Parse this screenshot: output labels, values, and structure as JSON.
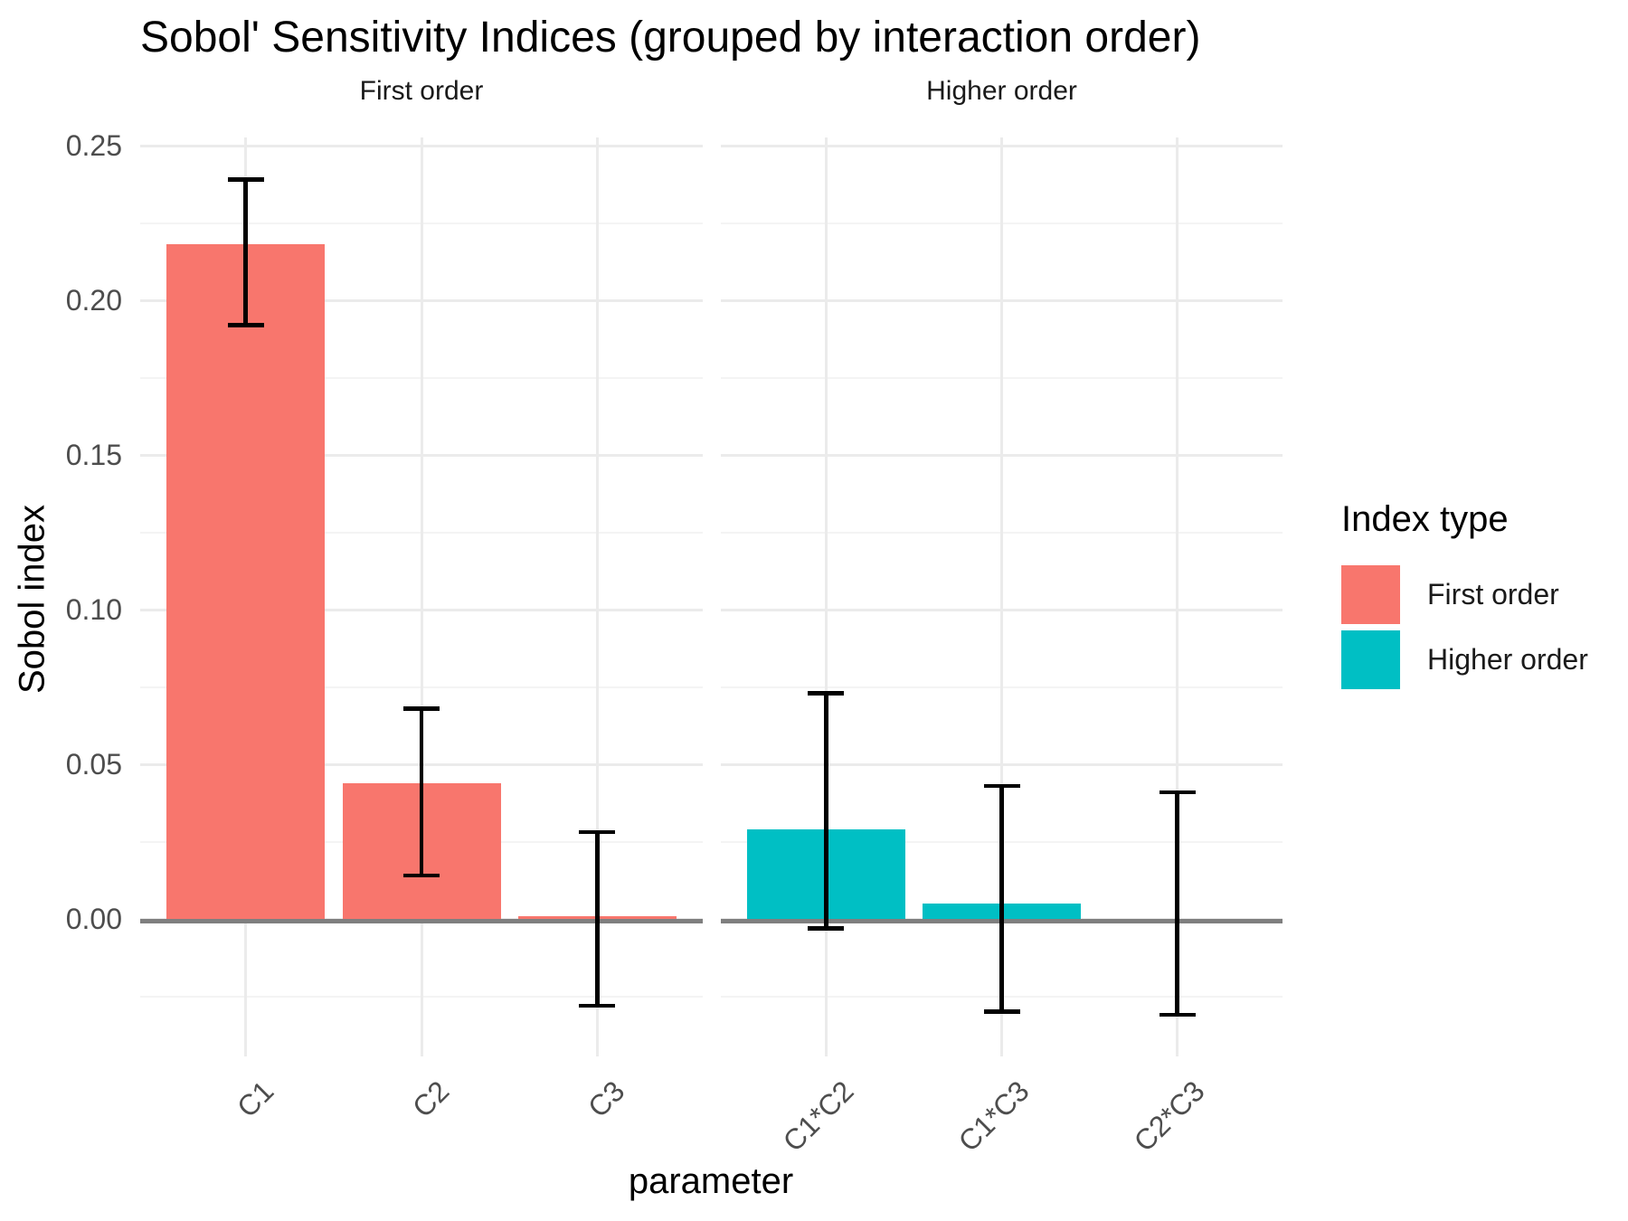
{
  "chart_data": {
    "type": "bar",
    "title": "Sobol' Sensitivity Indices (grouped by interaction order)",
    "xlabel": "parameter",
    "ylabel": "Sobol index",
    "grid": true,
    "error_bars": true,
    "ylim": [
      -0.0445,
      0.2525
    ],
    "y_major": [
      0.0,
      0.05,
      0.1,
      0.15,
      0.2,
      0.25
    ],
    "y_tick_labels": [
      "0.00",
      "0.05",
      "0.10",
      "0.15",
      "0.20",
      "0.25"
    ],
    "y_minor": [
      -0.025,
      0.025,
      0.075,
      0.125,
      0.175,
      0.225
    ],
    "facets": [
      {
        "label": "First order",
        "series": "First order",
        "color": "#F8766D",
        "categories": [
          "C1",
          "C2",
          "C3"
        ],
        "values": [
          0.218,
          0.044,
          0.001
        ],
        "ci_low": [
          0.192,
          0.014,
          -0.028
        ],
        "ci_high": [
          0.239,
          0.068,
          0.028
        ]
      },
      {
        "label": "Higher order",
        "series": "Higher order",
        "color": "#00BFC4",
        "categories": [
          "C1*C2",
          "C1*C3",
          "C2*C3"
        ],
        "values": [
          0.029,
          0.005,
          0.0
        ],
        "ci_low": [
          -0.003,
          -0.03,
          -0.031
        ],
        "ci_high": [
          0.073,
          0.043,
          0.041
        ]
      }
    ],
    "legend": {
      "title": "Index type",
      "position": "right",
      "items": [
        {
          "label": "First order",
          "color": "#F8766D"
        },
        {
          "label": "Higher order",
          "color": "#00BFC4"
        }
      ]
    },
    "colors": {
      "zero_line": "#7f7f7f",
      "error_bar": "#000000",
      "grid_major": "#ebebeb",
      "grid_minor": "#f4f4f4",
      "axis_text": "#4d4d4d"
    }
  }
}
